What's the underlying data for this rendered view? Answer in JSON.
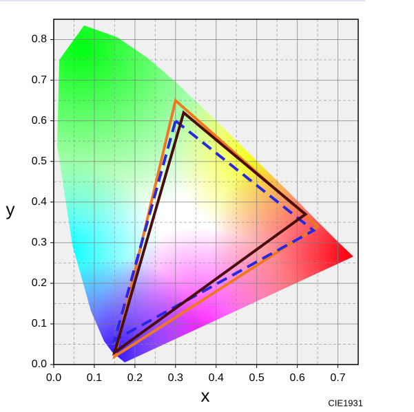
{
  "chart_data": {
    "type": "line",
    "annotation": "CIE1931",
    "xlabel": "x",
    "ylabel": "y",
    "xlim": [
      0,
      0.75
    ],
    "ylim": [
      0,
      0.85
    ],
    "xticks": [
      {
        "value": 0,
        "label": "0.0"
      },
      0.1,
      0.2,
      0.3,
      0.4,
      0.5,
      0.6,
      0.7
    ],
    "yticks": [
      {
        "value": 0,
        "label": "0.0"
      },
      0.1,
      0.2,
      0.3,
      0.4,
      0.5,
      0.6,
      0.7,
      0.8
    ],
    "minor_xticks": [
      0.05,
      0.15,
      0.25,
      0.35,
      0.45,
      0.55,
      0.65
    ],
    "minor_yticks": [
      0.05,
      0.15,
      0.25,
      0.35,
      0.45,
      0.55,
      0.65,
      0.75
    ],
    "grid": true,
    "series": [
      {
        "color": "#f07820",
        "x": [
          0.3,
          0.65,
          0.15
        ],
        "values": [
          0.65,
          0.34,
          0.02
        ]
      },
      {
        "color": "#2828e0",
        "dashed": true,
        "x": [
          0.3,
          0.64,
          0.15
        ],
        "values": [
          0.6,
          0.33,
          0.06
        ]
      },
      {
        "color": "#4a0c0c",
        "x": [
          0.32,
          0.62,
          0.15
        ],
        "values": [
          0.62,
          0.37,
          0.03
        ]
      }
    ]
  }
}
